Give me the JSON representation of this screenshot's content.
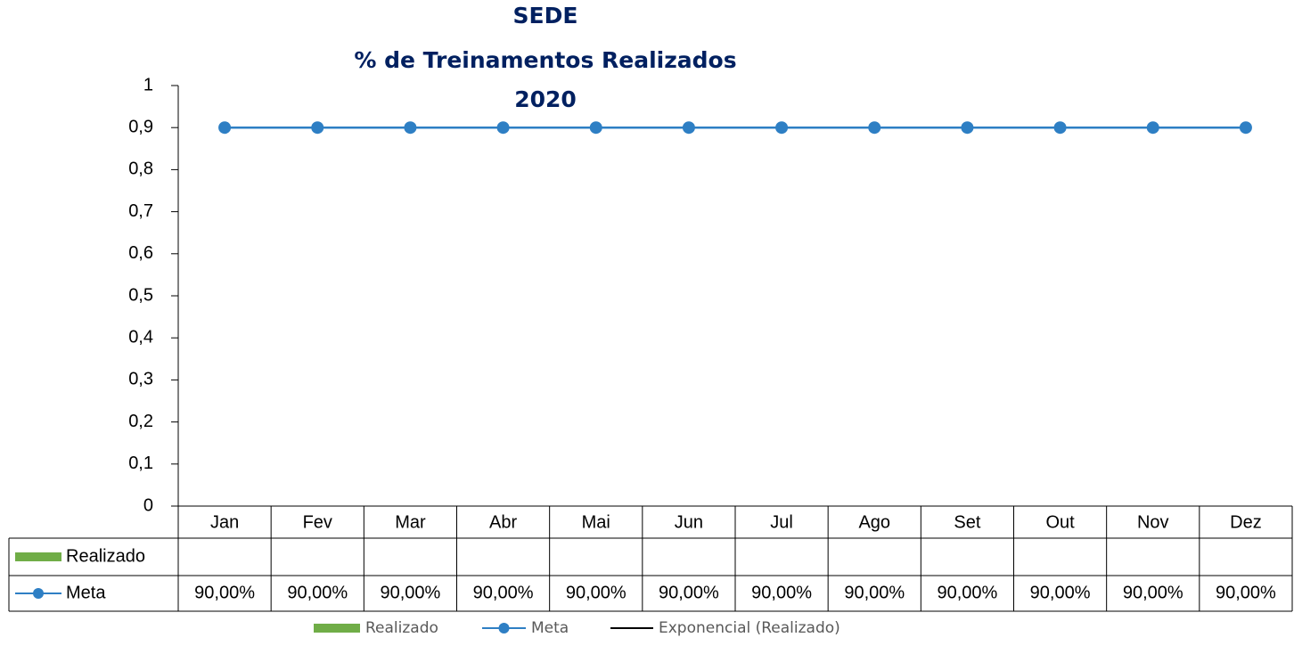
{
  "chart_data": {
    "type": "line",
    "title": [
      "SEDE",
      "% de Treinamentos Realizados",
      "2020"
    ],
    "categories": [
      "Jan",
      "Fev",
      "Mar",
      "Abr",
      "Mai",
      "Jun",
      "Jul",
      "Ago",
      "Set",
      "Out",
      "Nov",
      "Dez"
    ],
    "series": [
      {
        "name": "Realizado",
        "color": "#70ad47",
        "values": [
          null,
          null,
          null,
          null,
          null,
          null,
          null,
          null,
          null,
          null,
          null,
          null
        ]
      },
      {
        "name": "Meta",
        "color": "#2e7fc4",
        "values": [
          0.9,
          0.9,
          0.9,
          0.9,
          0.9,
          0.9,
          0.9,
          0.9,
          0.9,
          0.9,
          0.9,
          0.9
        ],
        "value_labels": [
          "90,00%",
          "90,00%",
          "90,00%",
          "90,00%",
          "90,00%",
          "90,00%",
          "90,00%",
          "90,00%",
          "90,00%",
          "90,00%",
          "90,00%",
          "90,00%"
        ]
      },
      {
        "name": "Exponencial (Realizado)",
        "color": "#000000",
        "values": [
          null,
          null,
          null,
          null,
          null,
          null,
          null,
          null,
          null,
          null,
          null,
          null
        ]
      }
    ],
    "ylim": [
      0,
      1
    ],
    "yticks": [
      0,
      {
        "value": 0.1,
        "label": "0,1"
      },
      {
        "value": 0.2,
        "label": "0,2"
      },
      {
        "value": 0.3,
        "label": "0,3"
      },
      {
        "value": 0.4,
        "label": "0,4"
      },
      {
        "value": 0.5,
        "label": "0,5"
      },
      {
        "value": 0.6,
        "label": "0,6"
      },
      {
        "value": 0.7,
        "label": "0,7"
      },
      {
        "value": 0.8,
        "label": "0,8"
      },
      {
        "value": 0.9,
        "label": "0,9"
      },
      1
    ]
  }
}
